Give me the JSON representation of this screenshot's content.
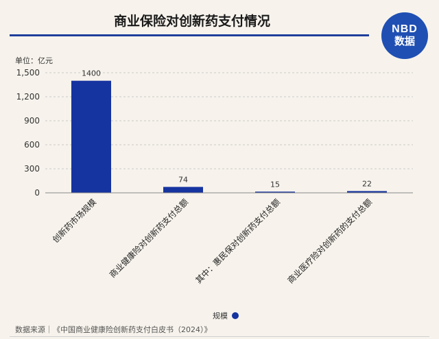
{
  "header": {
    "title": "商业保险对创新药支付情况",
    "logo_top": "NBD",
    "logo_bottom": "数据"
  },
  "chart_data": {
    "type": "bar",
    "unit_label": "单位：亿元",
    "categories": [
      "创新药市场规模",
      "商业健康险对创新药支付总额",
      "其中：惠民保对创新药支付总额",
      "商业医疗险对创新药的支付总额"
    ],
    "series": [
      {
        "name": "规模",
        "values": [
          1400,
          74,
          15,
          22
        ]
      }
    ],
    "data_labels": [
      "1400",
      "74",
      "15",
      "22"
    ],
    "ylim": [
      0,
      1500
    ],
    "yticks": [
      0,
      300,
      600,
      900,
      1200,
      1500
    ],
    "ytick_labels": [
      "0",
      "300",
      "600",
      "900",
      "1,200",
      "1,500"
    ],
    "grid": true,
    "legend_position": "bottom",
    "bar_color": "#1634a0"
  },
  "footer": {
    "source": "数据来源｜《中国商业健康险创新药支付白皮书（2024）》"
  }
}
